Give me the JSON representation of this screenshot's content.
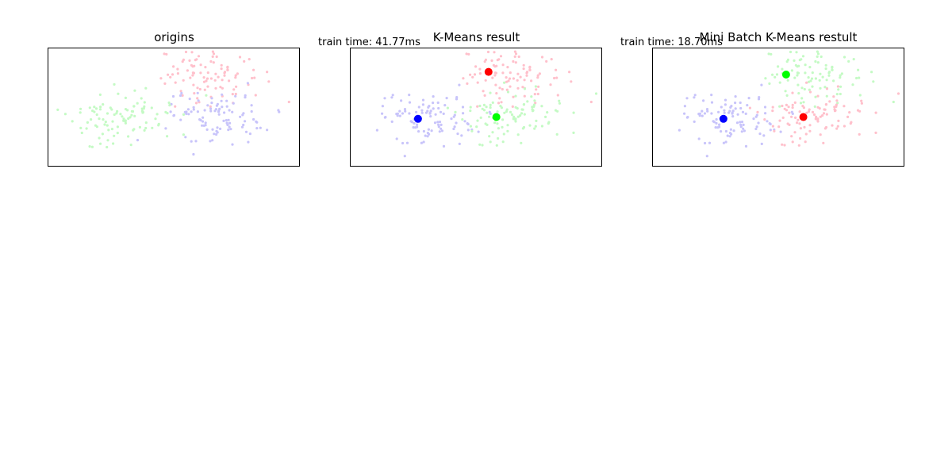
{
  "figure": {
    "panels": [
      {
        "title": "origins",
        "annotation": ""
      },
      {
        "title": "K-Means result",
        "annotation": "train time: 41.77ms"
      },
      {
        "title": "Mini Batch K-Means restult",
        "annotation": "train time: 18.70ms"
      }
    ]
  },
  "colors": {
    "pink": "#ffc0cb",
    "lavender": "#c8c4fa",
    "mint": "#c4fac4",
    "centroid_red": "#ff0000",
    "centroid_green": "#00ff00",
    "centroid_blue": "#0000ff"
  },
  "chart_data": [
    {
      "type": "scatter",
      "title": "origins",
      "xlim": [
        -4.5,
        3.5
      ],
      "ylim": [
        -3.5,
        3.0
      ],
      "axes_ticks": false,
      "series": [
        {
          "color": "#ffc0cb",
          "center": [
            0.5,
            1.5
          ]
        },
        {
          "color": "#c8c4fa",
          "center": [
            0.9,
            -0.8
          ]
        },
        {
          "color": "#c4fac4",
          "center": [
            -2.0,
            -1.0
          ]
        }
      ]
    },
    {
      "type": "scatter",
      "title": "K-Means result",
      "annotation": "train time: 41.77ms",
      "xlim": [
        -4.5,
        3.5
      ],
      "ylim": [
        -3.5,
        3.0
      ],
      "axes_ticks": false,
      "series": [
        {
          "color": "#ffc0cb",
          "center": [
            0.5,
            1.5
          ]
        },
        {
          "color": "#c8c4fa",
          "center": [
            -2.0,
            -0.9
          ]
        },
        {
          "color": "#c4fac4",
          "center": [
            0.8,
            -0.9
          ]
        }
      ],
      "centroids": [
        {
          "color": "#ff0000",
          "x": -0.1,
          "y": 1.7
        },
        {
          "color": "#00ff00",
          "x": 0.15,
          "y": -0.8
        },
        {
          "color": "#0000ff",
          "x": -2.35,
          "y": -0.9
        }
      ]
    },
    {
      "type": "scatter",
      "title": "Mini Batch K-Means restult",
      "annotation": "train time: 18.70ms",
      "xlim": [
        -4.5,
        3.5
      ],
      "ylim": [
        -3.5,
        3.0
      ],
      "axes_ticks": false,
      "series": [
        {
          "color": "#c4fac4",
          "center": [
            0.5,
            1.5
          ]
        },
        {
          "color": "#c8c4fa",
          "center": [
            -2.0,
            -0.9
          ]
        },
        {
          "color": "#ffc0cb",
          "center": [
            0.8,
            -0.9
          ]
        }
      ],
      "centroids": [
        {
          "color": "#00ff00",
          "x": -0.25,
          "y": 1.55
        },
        {
          "color": "#ff0000",
          "x": 0.3,
          "y": -0.8
        },
        {
          "color": "#0000ff",
          "x": -2.25,
          "y": -0.9
        }
      ]
    }
  ]
}
